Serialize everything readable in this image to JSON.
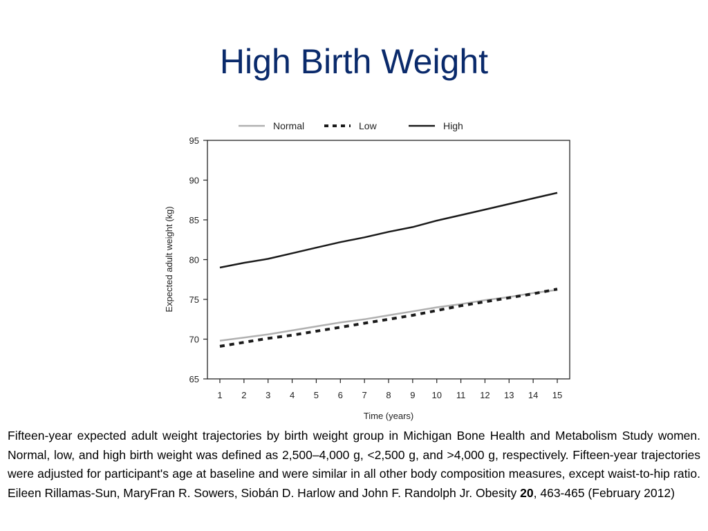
{
  "slide": {
    "title": "High Birth Weight"
  },
  "caption": {
    "text_before_volume": "Fifteen-year expected adult weight trajectories by birth weight group in Michigan Bone Health and Metabolism Study women. Normal, low, and high birth weight was defined as 2,500–4,000 g, <2,500 g, and >4,000 g, respectively. Fifteen-year trajectories were adjusted for participant's age at baseline and were similar in all other body composition measures, except waist-to-hip ratio. Eileen Rillamas-Sun, MaryFran R. Sowers, Siobán D. Harlow and John F. Randolph Jr. Obesity ",
    "volume": "20",
    "text_after_volume": ", 463-465 (February 2012)"
  },
  "chart_data": {
    "type": "line",
    "xlabel": "Time (years)",
    "ylabel": "Expected adult weight (kg)",
    "x": [
      1,
      2,
      3,
      4,
      5,
      6,
      7,
      8,
      9,
      10,
      11,
      12,
      13,
      14,
      15
    ],
    "ylim": [
      65,
      95
    ],
    "yticks": [
      65,
      70,
      75,
      80,
      85,
      90,
      95
    ],
    "grid": false,
    "legend_position": "top",
    "series": [
      {
        "name": "Normal",
        "style": "solid",
        "color": "#b0b0b0",
        "values": [
          69.8,
          70.2,
          70.6,
          71.1,
          71.6,
          72.1,
          72.5,
          73.0,
          73.5,
          74.0,
          74.4,
          74.9,
          75.3,
          75.8,
          76.2
        ]
      },
      {
        "name": "Low",
        "style": "dashed",
        "color": "#1a1a1a",
        "values": [
          69.1,
          69.6,
          70.1,
          70.5,
          71.0,
          71.5,
          72.0,
          72.5,
          73.0,
          73.6,
          74.2,
          74.7,
          75.2,
          75.7,
          76.3
        ]
      },
      {
        "name": "High",
        "style": "solid",
        "color": "#1a1a1a",
        "values": [
          79.0,
          79.6,
          80.1,
          80.8,
          81.5,
          82.2,
          82.8,
          83.5,
          84.1,
          84.9,
          85.6,
          86.3,
          87.0,
          87.7,
          88.4
        ]
      }
    ]
  }
}
